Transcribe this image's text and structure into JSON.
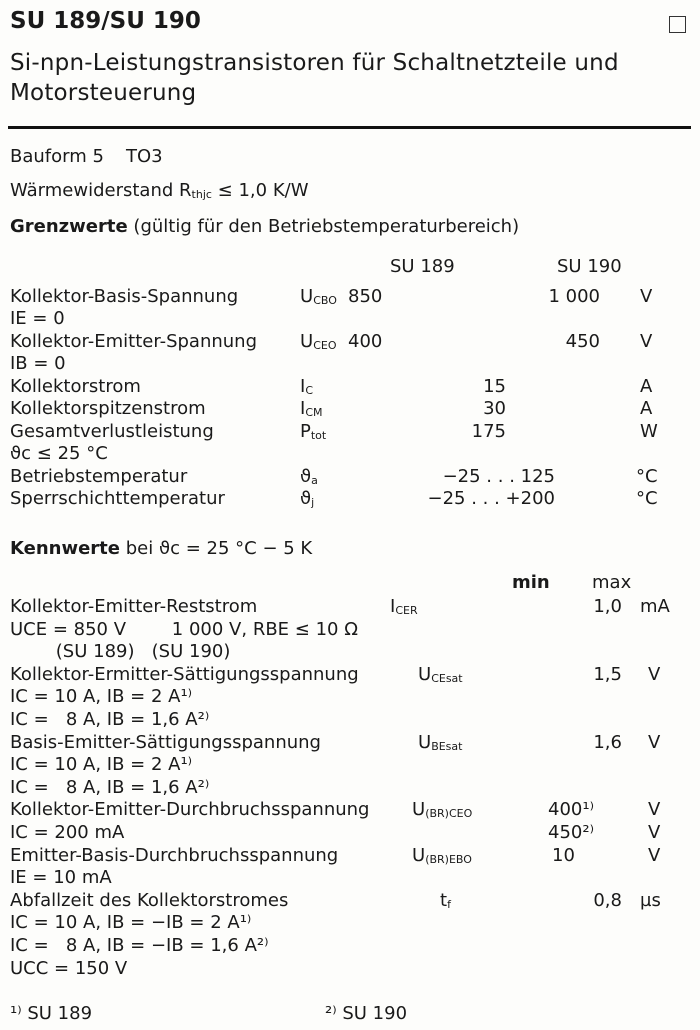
{
  "header": {
    "title": "SU 189/SU 190",
    "subtitle_line1": "Si-npn-Leistungstransistoren für Schaltnetzteile und",
    "subtitle_line2": "Motorsteuerung"
  },
  "general": {
    "bauform_label": "Bauform 5",
    "bauform_value": "TO3",
    "waerme_label": "Wärmewiderstand",
    "waerme_sym": "R",
    "waerme_sub": "thjc",
    "waerme_value": "≤ 1,0 K/W"
  },
  "grenzwerte": {
    "heading": "Grenzwerte",
    "heading_note": "(gültig für den Betriebstemperaturbereich)",
    "col_su189": "SU 189",
    "col_su190": "SU 190",
    "rows": [
      {
        "label": "Kollektor-Basis-Spannung",
        "sym": "U",
        "sub": "CBO",
        "v1": "850",
        "v2": "1 000",
        "unit": "V"
      },
      {
        "label": "IE = 0"
      },
      {
        "label": "Kollektor-Emitter-Spannung",
        "sym": "U",
        "sub": "CEO",
        "v1": "400",
        "v2": "450",
        "unit": "V"
      },
      {
        "label": "IB = 0"
      },
      {
        "label": "Kollektorstrom",
        "sym": "I",
        "sub": "C",
        "vc": "15",
        "unit": "A"
      },
      {
        "label": "Kollektorspitzenstrom",
        "sym": "I",
        "sub": "CM",
        "vc": "30",
        "unit": "A"
      },
      {
        "label": "Gesamtverlustleistung",
        "sym": "P",
        "sub": "tot",
        "vc": "175",
        "unit": "W"
      },
      {
        "label": "ϑc ≤ 25 °C"
      },
      {
        "label": "Betriebstemperatur",
        "sym": "ϑ",
        "sub": "a",
        "vc": "−25 . . . 125",
        "unit": "°C"
      },
      {
        "label": "Sperrschichttemperatur",
        "sym": "ϑ",
        "sub": "j",
        "vc": "−25 . . . +200",
        "unit": "°C"
      }
    ]
  },
  "kennwerte": {
    "heading": "Kennwerte",
    "heading_note": "bei ϑc = 25 °C − 5 K",
    "col_min": "min",
    "col_max": "max",
    "rows": [
      {
        "label": "Kollektor-Emitter-Reststrom",
        "sym": "I",
        "sub": "CER",
        "max": "1,0",
        "unit": "mA"
      },
      {
        "label": "UCE = 850 V        1 000 V, RBE ≤ 10 Ω"
      },
      {
        "label": "        (SU 189)   (SU 190)"
      },
      {
        "label": "Kollektor-Ermitter-Sättigungsspannung",
        "sym": "U",
        "sub": "CEsat",
        "max": "1,5",
        "unit": "V"
      },
      {
        "label": "IC = 10 A, IB = 2 A¹⁾"
      },
      {
        "label": "IC =   8 A, IB = 1,6 A²⁾"
      },
      {
        "label": "Basis-Emitter-Sättigungsspannung",
        "sym": "U",
        "sub": "BEsat",
        "max": "1,6",
        "unit": "V"
      },
      {
        "label": "IC = 10 A, IB = 2 A¹⁾"
      },
      {
        "label": "IC =   8 A, IB = 1,6 A²⁾"
      },
      {
        "label": "Kollektor-Emitter-Durchbruchsspannung",
        "sym": "U",
        "sub": "(BR)CEO",
        "min": "400¹⁾",
        "unit": "V"
      },
      {
        "label": "IC = 200 mA",
        "min": "450²⁾",
        "unit": "V"
      },
      {
        "label": "Emitter-Basis-Durchbruchsspannung",
        "sym": "U",
        "sub": "(BR)EBO",
        "min": "10",
        "unit": "V"
      },
      {
        "label": "IE = 10 mA"
      },
      {
        "label": "Abfallzeit des Kollektorstromes",
        "sym": "t",
        "sub": "f",
        "max": "0,8",
        "unit": "µs"
      },
      {
        "label": "IC = 10 A, IB = −IB = 2 A¹⁾"
      },
      {
        "label": "IC =   8 A, IB = −IB = 1,6 A²⁾"
      },
      {
        "label": "UCC = 150 V"
      }
    ]
  },
  "footnotes": {
    "note1": "¹⁾ SU 189",
    "note2": "²⁾ SU 190"
  }
}
